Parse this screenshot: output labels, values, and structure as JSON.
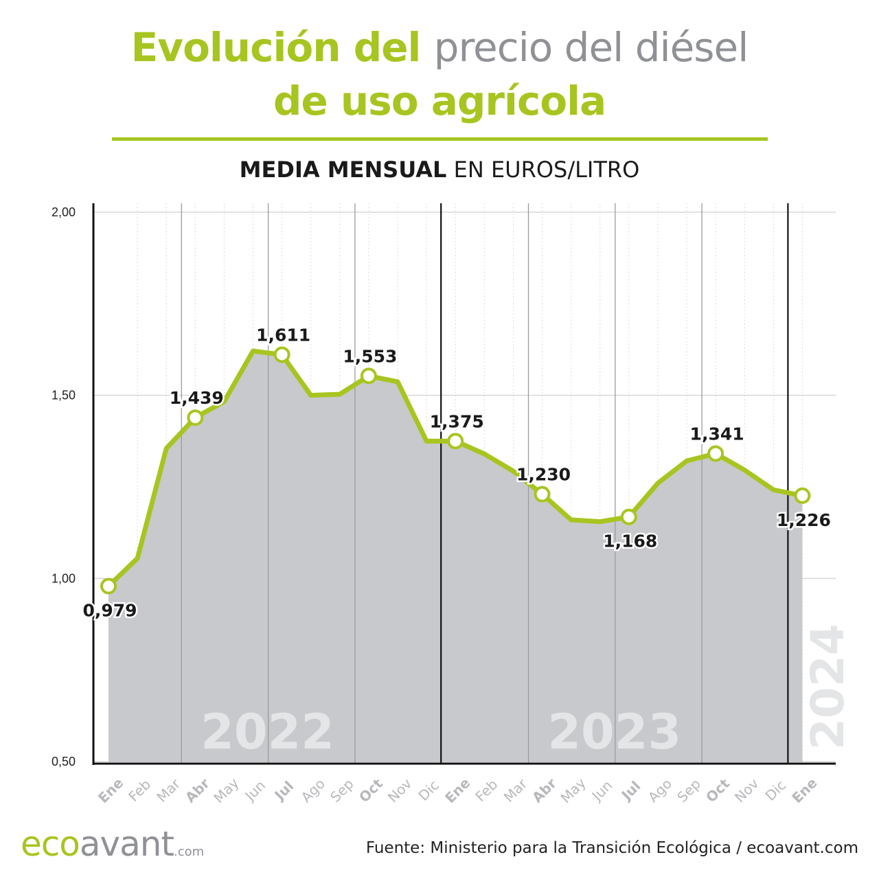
{
  "title": {
    "part1": "Evolución del",
    "part2": "precio del diésel",
    "line2": "de uso agrícola"
  },
  "subtitle": {
    "bold": "MEDIA MENSUAL",
    "rest": "EN EUROS/LITRO"
  },
  "brand": {
    "eco": "eco",
    "avant": "avant",
    "dotcom": ".com"
  },
  "source": "Fuente: Ministerio para la Transición Ecológica / ecoavant.com",
  "colors": {
    "accent": "#a7c520",
    "area": "#c8c9cc",
    "title_gray": "#8f9195",
    "year_label": "#e4e5e6"
  },
  "chart_data": {
    "type": "area",
    "x": [
      "Ene",
      "Feb",
      "Mar",
      "Abr",
      "May",
      "Jun",
      "Jul",
      "Ago",
      "Sep",
      "Oct",
      "Nov",
      "Dic",
      "Ene",
      "Feb",
      "Mar",
      "Abr",
      "May",
      "Jun",
      "Jul",
      "Ago",
      "Sep",
      "Oct",
      "Nov",
      "Dic",
      "Ene"
    ],
    "bold_ticks": [
      0,
      3,
      6,
      9,
      12,
      15,
      18,
      21,
      24
    ],
    "series": [
      {
        "values": [
          0.979,
          1.055,
          1.355,
          1.439,
          1.483,
          1.621,
          1.611,
          1.5,
          1.503,
          1.553,
          1.537,
          1.375,
          1.375,
          1.34,
          1.293,
          1.23,
          1.16,
          1.155,
          1.168,
          1.26,
          1.321,
          1.341,
          1.296,
          1.242,
          1.226
        ]
      }
    ],
    "labels": [
      {
        "index": 0,
        "text": "0,979",
        "pos": "below"
      },
      {
        "index": 3,
        "text": "1,439",
        "pos": "above"
      },
      {
        "index": 6,
        "text": "1,611",
        "pos": "above"
      },
      {
        "index": 9,
        "text": "1,553",
        "pos": "above"
      },
      {
        "index": 12,
        "text": "1,375",
        "pos": "above"
      },
      {
        "index": 15,
        "text": "1,230",
        "pos": "above"
      },
      {
        "index": 18,
        "text": "1,168",
        "pos": "below"
      },
      {
        "index": 21,
        "text": "1,341",
        "pos": "above"
      },
      {
        "index": 24,
        "text": "1,226",
        "pos": "below"
      }
    ],
    "yticks": [
      "2,00",
      "1,50",
      "1,00",
      "0,50"
    ],
    "ytick_values": [
      2.0,
      1.5,
      1.0,
      0.5
    ],
    "ylim": [
      0.5,
      2.0
    ],
    "years": [
      {
        "label": "2022",
        "start": 0
      },
      {
        "label": "2023",
        "start": 12
      },
      {
        "label": "2024",
        "start": 24
      }
    ],
    "grid": true
  }
}
